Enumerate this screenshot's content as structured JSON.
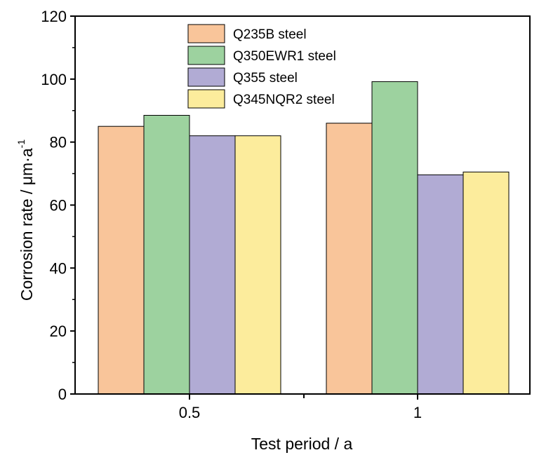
{
  "chart_data": {
    "type": "bar",
    "title": "",
    "xlabel": "Test period / a",
    "ylabel_main": "Corrosion rate / μm·a",
    "ylabel_sup": "-1",
    "categories": [
      "0.5",
      "1"
    ],
    "ylim": [
      0,
      120
    ],
    "yticks": [
      0,
      20,
      40,
      60,
      80,
      100,
      120
    ],
    "grid": false,
    "legend_position": "top-center",
    "series": [
      {
        "name": "Q235B steel",
        "values": [
          85,
          86
        ],
        "color": "#F9C59A"
      },
      {
        "name": "Q350EWR1 steel",
        "values": [
          88.5,
          99.2
        ],
        "color": "#9DD29F"
      },
      {
        "name": "Q355 steel",
        "values": [
          82,
          69.6
        ],
        "color": "#B1ABD4"
      },
      {
        "name": "Q345NQR2 steel",
        "values": [
          82,
          70.5
        ],
        "color": "#FCEC9C"
      }
    ]
  }
}
